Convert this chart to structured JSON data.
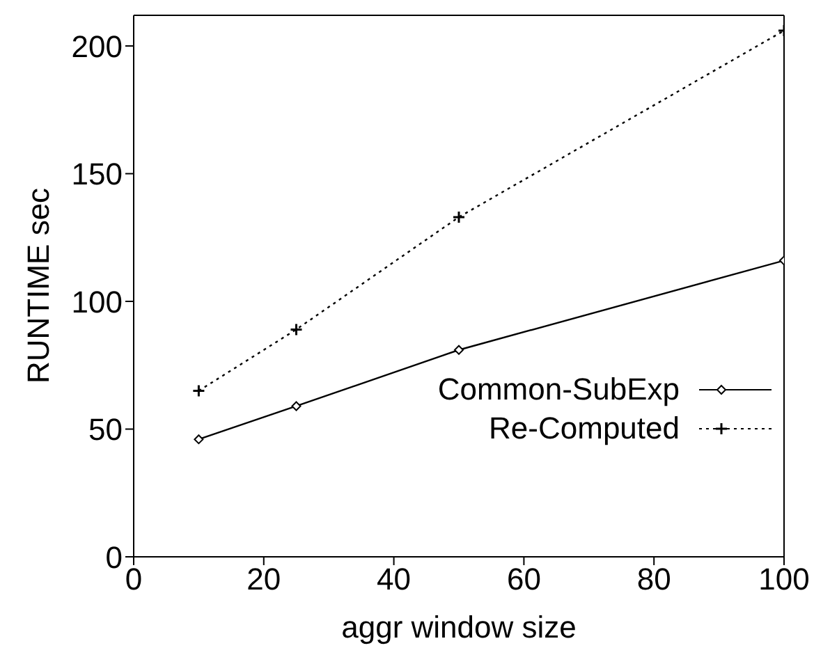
{
  "chart_data": {
    "type": "line",
    "xlabel": "aggr window size",
    "ylabel": "RUNTIME sec",
    "x": [
      10,
      25,
      50,
      100
    ],
    "series": [
      {
        "name": "Common-SubExp",
        "color": "#000000",
        "values": [
          46,
          59,
          81,
          116
        ],
        "marker": "diamond",
        "line_style": "solid"
      },
      {
        "name": "Re-Computed",
        "color": "#000000",
        "values": [
          65,
          89,
          133,
          206
        ],
        "marker": "cross",
        "line_style": "dotted"
      }
    ],
    "xlim": [
      0,
      100
    ],
    "xticks": [
      0,
      20,
      40,
      60,
      80,
      100
    ],
    "ylim": [
      0,
      212
    ],
    "yticks": [
      0,
      50,
      100,
      150,
      200
    ],
    "grid": false,
    "legend": "bottom right"
  }
}
